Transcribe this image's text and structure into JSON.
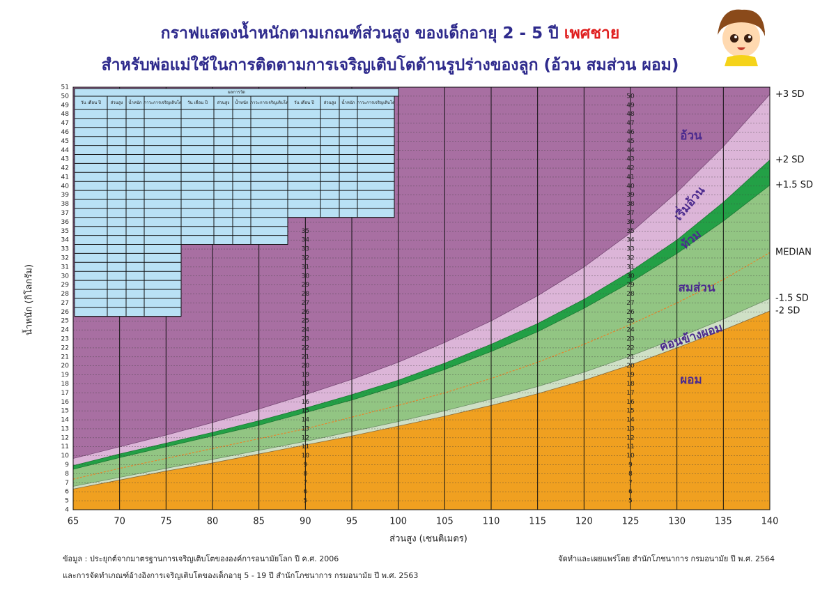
{
  "chart_data": {
    "type": "area",
    "title": "กราฟแสดงน้ำหนักตามเกณฑ์ส่วนสูง ของเด็กอายุ 2 - 5 ปี",
    "title_highlight": "เพศชาย",
    "subtitle": "สำหรับพ่อแม่ใช้ในการติดตามการเจริญเติบโตด้านรูปร่างของลูก (อ้วน สมส่วน ผอม)",
    "x_label": "ส่วนสูง (เซนติเมตร)",
    "y_label": "น้ำหนัก (กิโลกรัม)",
    "x": [
      65,
      70,
      75,
      80,
      85,
      90,
      95,
      100,
      105,
      110,
      115,
      120,
      125,
      130,
      135,
      140
    ],
    "background": "#a86fa2",
    "series": [
      {
        "name": "+3 SD",
        "color": "#7a4a78",
        "fill": "#dcb5d8",
        "values": [
          9.7,
          11.0,
          12.3,
          13.7,
          15.2,
          16.8,
          18.5,
          20.4,
          22.6,
          25.0,
          27.8,
          31.0,
          34.8,
          39.3,
          44.4,
          50.2
        ]
      },
      {
        "name": "+2 SD",
        "color": "#1b7a33",
        "fill": "#23a046",
        "values": [
          8.9,
          10.2,
          11.4,
          12.6,
          13.9,
          15.3,
          16.8,
          18.4,
          20.3,
          22.4,
          24.7,
          27.4,
          30.5,
          34.0,
          38.2,
          42.9
        ]
      },
      {
        "name": "+1.5 SD",
        "color": "#1b7a33",
        "fill": "#92c583",
        "values": [
          8.5,
          9.8,
          11.0,
          12.2,
          13.4,
          14.8,
          16.2,
          17.8,
          19.6,
          21.6,
          23.8,
          26.4,
          29.3,
          32.5,
          36.1,
          40.1
        ]
      },
      {
        "name": "MEDIAN",
        "color": "#e8832a",
        "dashed": true,
        "values": [
          7.4,
          8.6,
          9.7,
          10.8,
          11.9,
          13.0,
          14.3,
          15.6,
          17.0,
          18.6,
          20.4,
          22.4,
          24.6,
          27.0,
          29.6,
          32.6
        ]
      },
      {
        "name": "-1.5 SD",
        "color": "#6d8f66",
        "fill": "#cfe0c6",
        "values": [
          6.6,
          7.6,
          8.6,
          9.6,
          10.6,
          11.6,
          12.7,
          13.8,
          15.0,
          16.3,
          17.7,
          19.3,
          21.1,
          23.1,
          25.2,
          27.5
        ]
      },
      {
        "name": "-2 SD",
        "color": "#8a6a3a",
        "fill": "#f0a020",
        "values": [
          6.3,
          7.3,
          8.3,
          9.2,
          10.2,
          11.2,
          12.2,
          13.3,
          14.4,
          15.6,
          16.9,
          18.4,
          20.1,
          22.0,
          24.0,
          26.1
        ]
      }
    ],
    "zones": [
      "อ้วน",
      "เริ่มอ้วน",
      "ท้วม",
      "สมส่วน",
      "ค่อนข้างผอม",
      "ผอม"
    ],
    "xlim": [
      65,
      140
    ],
    "ylim": [
      4,
      51
    ],
    "xticks": [
      65,
      70,
      75,
      80,
      85,
      90,
      95,
      100,
      105,
      110,
      115,
      120,
      125,
      130,
      135,
      140
    ],
    "yticks": [
      4,
      5,
      6,
      7,
      8,
      9,
      10,
      11,
      12,
      13,
      14,
      15,
      16,
      17,
      18,
      19,
      20,
      21,
      22,
      23,
      24,
      25,
      26,
      27,
      28,
      29,
      30,
      31,
      32,
      33,
      34,
      35,
      36,
      37,
      38,
      39,
      40,
      41,
      42,
      43,
      44,
      45,
      46,
      47,
      48,
      49,
      50,
      51
    ],
    "inner_tick_columns": [
      {
        "x": 90,
        "labels": [
          5,
          6,
          7,
          8,
          9,
          10,
          11,
          12,
          13,
          14,
          15,
          16,
          17,
          18,
          19,
          20,
          21,
          22,
          23,
          24,
          25,
          26,
          27,
          28,
          29,
          30,
          31,
          32,
          33,
          34,
          35
        ]
      },
      {
        "x": 125,
        "labels": [
          5,
          6,
          7,
          8,
          9,
          10,
          11,
          12,
          13,
          14,
          15,
          16,
          17,
          18,
          19,
          20,
          21,
          22,
          23,
          24,
          25,
          26,
          27,
          28,
          29,
          30,
          31,
          32,
          33,
          34,
          35,
          36,
          37,
          38,
          39,
          40,
          41,
          42,
          43,
          44,
          45,
          46,
          47,
          48,
          49,
          50
        ]
      }
    ],
    "grid": true,
    "record_table": {
      "title": "ผลการวัด",
      "columns": [
        "วัน เดือน ปี",
        "ส่วนสูง",
        "น้ำหนัก",
        "ภาวะการเจริญเติบโต"
      ]
    },
    "footnotes": [
      "ข้อมูล : ประยุกต์จากมาตรฐานการเจริญเติบโตขององค์การอนามัยโลก ปี ค.ศ. 2006",
      "และการจัดทำเกณฑ์อ้างอิงการเจริญเติบโตของเด็กอายุ 5 - 19 ปี  สำนักโภชนาการ กรมอนามัย ปี พ.ศ. 2563"
    ],
    "credit": "จัดทำและเผยแพร่โดย สำนักโภชนาการ กรมอนามัย ปี พ.ศ. 2564"
  }
}
